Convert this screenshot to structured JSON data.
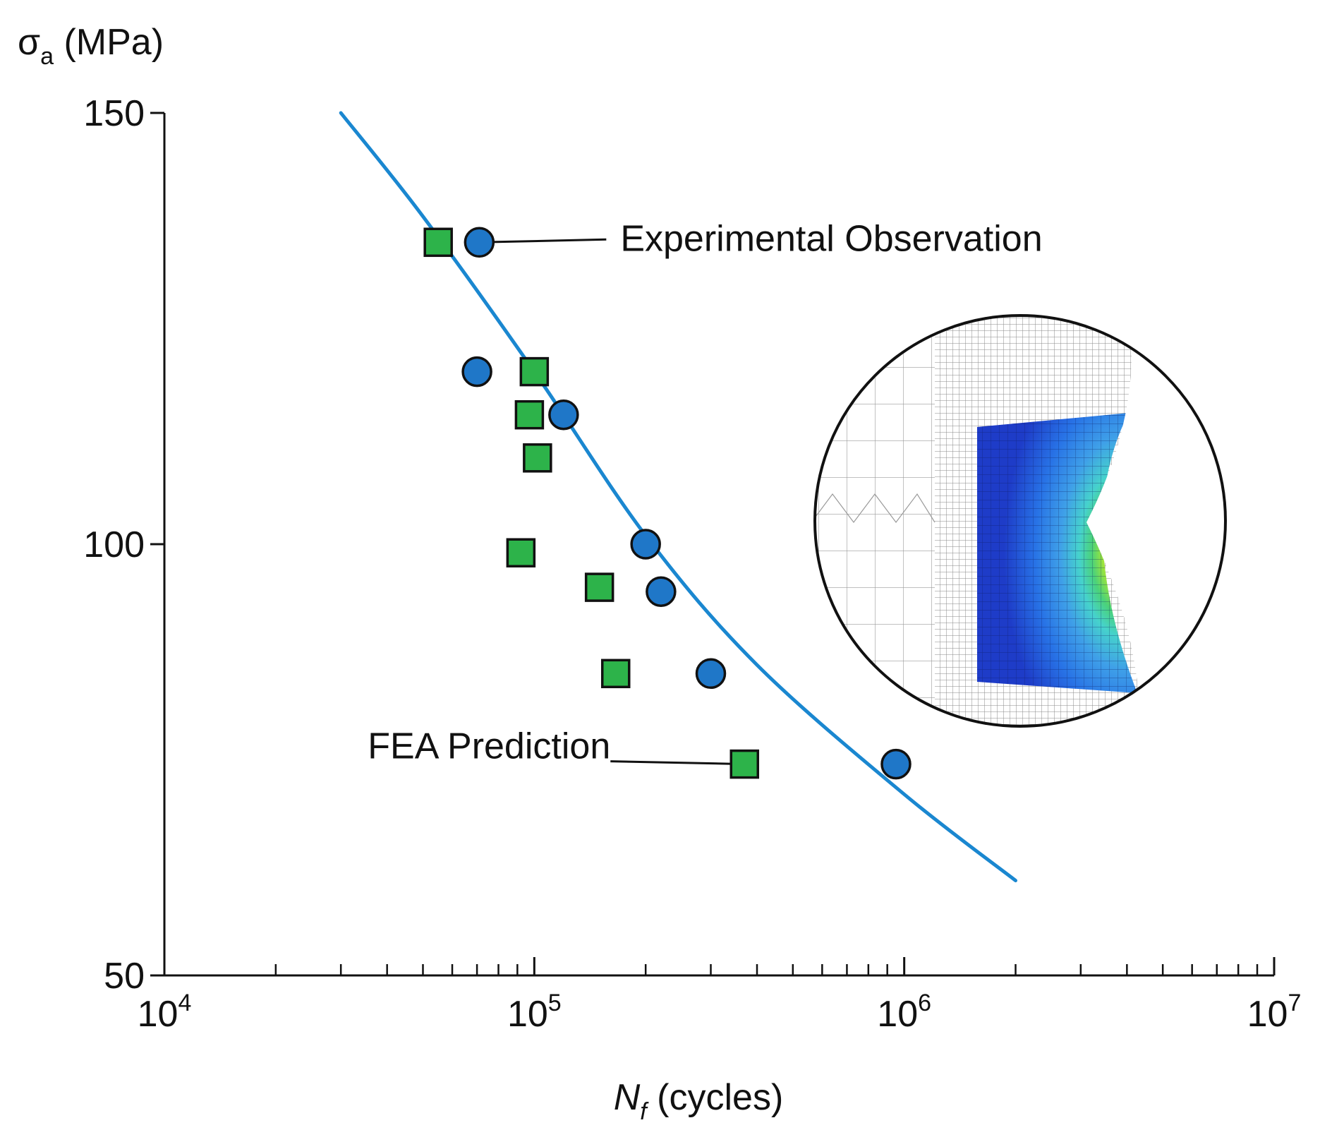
{
  "chart_data": {
    "type": "scatter",
    "title": "",
    "ylabel": {
      "symbol": "σ",
      "subscript": "a",
      "unit": "(MPa)"
    },
    "xlabel": {
      "symbol": "N",
      "subscript": "f",
      "unit": "(cycles)"
    },
    "xscale": "log",
    "xlim": [
      10000,
      10000000
    ],
    "ylim": [
      50,
      150
    ],
    "xticks": [
      {
        "value": 10000,
        "base": "10",
        "exp": "4"
      },
      {
        "value": 100000,
        "base": "10",
        "exp": "5"
      },
      {
        "value": 1000000,
        "base": "10",
        "exp": "6"
      },
      {
        "value": 10000000,
        "base": "10",
        "exp": "7"
      }
    ],
    "yticks": [
      {
        "value": 50,
        "label": "50"
      },
      {
        "value": 100,
        "label": "100"
      },
      {
        "value": 150,
        "label": "150"
      }
    ],
    "series": [
      {
        "name": "Experimental Observation",
        "marker": "circle",
        "color": "#1f77c8",
        "points": [
          {
            "x": 71000,
            "y": 135
          },
          {
            "x": 70000,
            "y": 120
          },
          {
            "x": 120000,
            "y": 115
          },
          {
            "x": 200000,
            "y": 100
          },
          {
            "x": 220000,
            "y": 94.5
          },
          {
            "x": 300000,
            "y": 85
          },
          {
            "x": 950000,
            "y": 74.5
          }
        ]
      },
      {
        "name": "FEA Prediction",
        "marker": "square",
        "color": "#2db34a",
        "points": [
          {
            "x": 55000,
            "y": 135
          },
          {
            "x": 100000,
            "y": 120
          },
          {
            "x": 97000,
            "y": 115
          },
          {
            "x": 102000,
            "y": 110
          },
          {
            "x": 92000,
            "y": 99
          },
          {
            "x": 150000,
            "y": 95
          },
          {
            "x": 166000,
            "y": 85
          },
          {
            "x": 370000,
            "y": 74.5
          }
        ]
      },
      {
        "name": "fit-curve",
        "type": "line",
        "color": "#1a87d0",
        "points": [
          {
            "x": 30000,
            "y": 150
          },
          {
            "x": 50000,
            "y": 138
          },
          {
            "x": 100000,
            "y": 120
          },
          {
            "x": 200000,
            "y": 101
          },
          {
            "x": 400000,
            "y": 86
          },
          {
            "x": 1000000,
            "y": 71
          },
          {
            "x": 2000000,
            "y": 61
          }
        ]
      }
    ],
    "annotations": [
      {
        "text": "Experimental Observation",
        "target_series": "Experimental Observation",
        "target_point": 0
      },
      {
        "text": "FEA Prediction",
        "target_series": "FEA Prediction",
        "target_point": 7
      }
    ],
    "inset": {
      "description": "FEA mesh with stress contour",
      "colors": [
        "#1e3cc8",
        "#2873e6",
        "#3fa0e8",
        "#46d2cc",
        "#4bd27a",
        "#9be43c",
        "#f0dc28",
        "#f08c1e",
        "#e1281e"
      ]
    }
  }
}
